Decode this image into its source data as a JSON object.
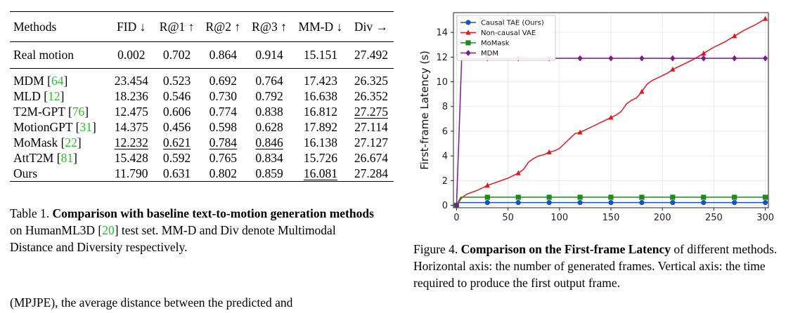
{
  "table": {
    "headers": [
      "Methods",
      "FID ↓",
      "R@1 ↑",
      "R@2 ↑",
      "R@3 ↑",
      "MM-D ↓",
      "Div →"
    ],
    "real": {
      "name": "Real motion",
      "values": [
        "0.002",
        "0.702",
        "0.864",
        "0.914",
        "15.151",
        "27.492"
      ]
    },
    "rows": [
      {
        "name": "MDM",
        "cite": "64",
        "values": [
          "23.454",
          "0.523",
          "0.692",
          "0.764",
          "17.423",
          "26.325"
        ]
      },
      {
        "name": "MLD",
        "cite": "12",
        "values": [
          "18.236",
          "0.546",
          "0.730",
          "0.792",
          "16.638",
          "26.352"
        ]
      },
      {
        "name": "T2M-GPT",
        "cite": "76",
        "values": [
          "12.475",
          "0.606",
          "0.774",
          "0.838",
          "16.812",
          "27.275"
        ]
      },
      {
        "name": "MotionGPT",
        "cite": "31",
        "values": [
          "14.375",
          "0.456",
          "0.598",
          "0.628",
          "17.892",
          "27.114"
        ]
      },
      {
        "name": "MoMask",
        "cite": "22",
        "values": [
          "12.232",
          "0.621",
          "0.784",
          "0.846",
          "16.138",
          "27.127"
        ]
      },
      {
        "name": "AttT2M",
        "cite": "81",
        "values": [
          "15.428",
          "0.592",
          "0.765",
          "0.834",
          "15.726",
          "26.674"
        ]
      }
    ],
    "ours": {
      "name": "Ours",
      "values": [
        "11.790",
        "0.631",
        "0.802",
        "0.859",
        "16.081",
        "27.284"
      ]
    }
  },
  "table_caption": {
    "label": "Table 1.",
    "bold": "Comparison with baseline text-to-motion generation methods",
    "rest_pre": "on HumanML3D [",
    "cite": "20",
    "rest_post": "] test set. MM-D and Div denote Multimodal Distance and Diversity respectively."
  },
  "figure_caption": {
    "label": "Figure 4.",
    "bold": "Comparison on the First-frame Latency",
    "rest": "of different methods. Horizontal axis: the number of generated frames. Vertical axis: the time required to produce the first output frame."
  },
  "body_text": "(MPJPE), the average distance between the predicted and",
  "chart_data": {
    "type": "line",
    "ylabel": "First-frame Latency (s)",
    "xlabel": "",
    "xlim": [
      -3,
      303
    ],
    "ylim": [
      -0.2,
      15.6
    ],
    "xticks": [
      0,
      50,
      100,
      150,
      200,
      250,
      300
    ],
    "yticks": [
      0,
      2,
      4,
      6,
      8,
      10,
      12,
      14
    ],
    "grid": true,
    "legend_position": "top-left",
    "series": [
      {
        "name": "Causal TAE (Ours)",
        "color": "#1f4fbf",
        "marker": "circle",
        "line_x": [
          0,
          2,
          300
        ],
        "line_y": [
          0,
          0.22,
          0.22
        ],
        "markers_x": [
          0,
          30,
          60,
          90,
          120,
          150,
          180,
          210,
          240,
          270,
          300
        ],
        "markers_y": [
          0,
          0.22,
          0.22,
          0.22,
          0.22,
          0.22,
          0.22,
          0.22,
          0.22,
          0.22,
          0.22
        ]
      },
      {
        "name": "Non-causal VAE",
        "color": "#e8141c",
        "marker": "triangle",
        "line_x": [
          0,
          5,
          10,
          20,
          30,
          40,
          50,
          55,
          60,
          65,
          70,
          75,
          80,
          85,
          90,
          95,
          100,
          105,
          110,
          115,
          120,
          125,
          130,
          135,
          140,
          145,
          150,
          155,
          160,
          165,
          170,
          175,
          180,
          185,
          190,
          195,
          200,
          205,
          210,
          220,
          230,
          240,
          250,
          260,
          270,
          280,
          290,
          300
        ],
        "line_y": [
          0,
          0.6,
          0.9,
          1.2,
          1.6,
          1.9,
          2.2,
          2.4,
          2.6,
          2.9,
          3.5,
          3.8,
          4.0,
          4.1,
          4.3,
          4.4,
          4.6,
          5.0,
          5.4,
          5.8,
          5.9,
          6.1,
          6.3,
          6.5,
          6.7,
          6.9,
          7.1,
          7.3,
          7.6,
          8.2,
          8.5,
          8.7,
          9.2,
          9.8,
          10.1,
          10.3,
          10.5,
          10.7,
          11.0,
          11.4,
          11.8,
          12.3,
          12.8,
          13.2,
          13.7,
          14.2,
          14.6,
          15.1
        ],
        "markers_x": [
          0,
          30,
          60,
          90,
          120,
          150,
          180,
          210,
          240,
          270,
          300
        ],
        "markers_y": [
          0,
          1.6,
          2.6,
          4.3,
          5.9,
          7.1,
          9.2,
          11.0,
          12.3,
          13.7,
          15.1
        ]
      },
      {
        "name": "MoMask",
        "color": "#1a8c1a",
        "marker": "square",
        "line_x": [
          0,
          4,
          300
        ],
        "line_y": [
          0,
          0.65,
          0.65
        ],
        "markers_x": [
          0,
          30,
          60,
          90,
          120,
          150,
          180,
          210,
          240,
          270,
          300
        ],
        "markers_y": [
          0,
          0.65,
          0.65,
          0.65,
          0.65,
          0.65,
          0.65,
          0.65,
          0.65,
          0.65,
          0.65
        ]
      },
      {
        "name": "MDM",
        "color": "#7d1a8f",
        "marker": "diamond",
        "line_x": [
          0,
          5,
          300
        ],
        "line_y": [
          0,
          11.9,
          11.9
        ],
        "markers_x": [
          0,
          30,
          60,
          90,
          120,
          150,
          180,
          210,
          240,
          270,
          300
        ],
        "markers_y": [
          0,
          11.9,
          11.9,
          11.9,
          11.9,
          11.9,
          11.9,
          11.9,
          11.9,
          11.9,
          11.9
        ]
      }
    ]
  }
}
